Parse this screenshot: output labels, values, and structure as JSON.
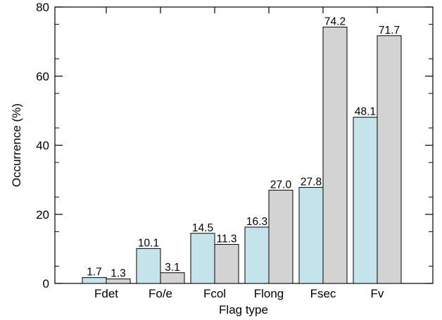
{
  "chart_data": {
    "type": "bar",
    "title": "",
    "xlabel": "Flag type",
    "ylabel": "Occurrence (%)",
    "ylim": [
      0,
      80
    ],
    "yticks": [
      0,
      20,
      40,
      60,
      80
    ],
    "categories": [
      "Fdet",
      "Fo/e",
      "Fcol",
      "Flong",
      "Fsec",
      "Fv"
    ],
    "series": [
      {
        "values": [
          1.7,
          10.1,
          14.5,
          16.3,
          27.8,
          48.1
        ],
        "color": "#c4e3ea"
      },
      {
        "values": [
          1.3,
          3.1,
          11.3,
          27.0,
          74.2,
          71.7
        ],
        "color": "#d3d3d3"
      }
    ],
    "data_labels": [
      [
        "1.7",
        "10.1",
        "14.5",
        "16.3",
        "27.8",
        "48.1"
      ],
      [
        "1.3",
        "3.1",
        "11.3",
        "27.0",
        "74.2",
        "71.7"
      ]
    ],
    "grid": false,
    "legend": "none"
  }
}
